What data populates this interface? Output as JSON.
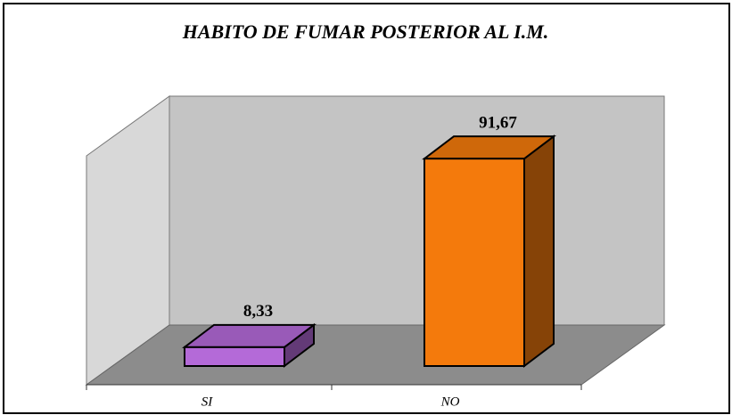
{
  "chart_data": {
    "type": "bar3d",
    "title": "HABITO DE FUMAR POSTERIOR AL I.M.",
    "categories": [
      "SI",
      "NO"
    ],
    "values": [
      8.33,
      91.67
    ],
    "value_labels": [
      "8,33",
      "91,67"
    ],
    "colors": [
      "#b46ad8",
      "#f47a0c"
    ]
  }
}
